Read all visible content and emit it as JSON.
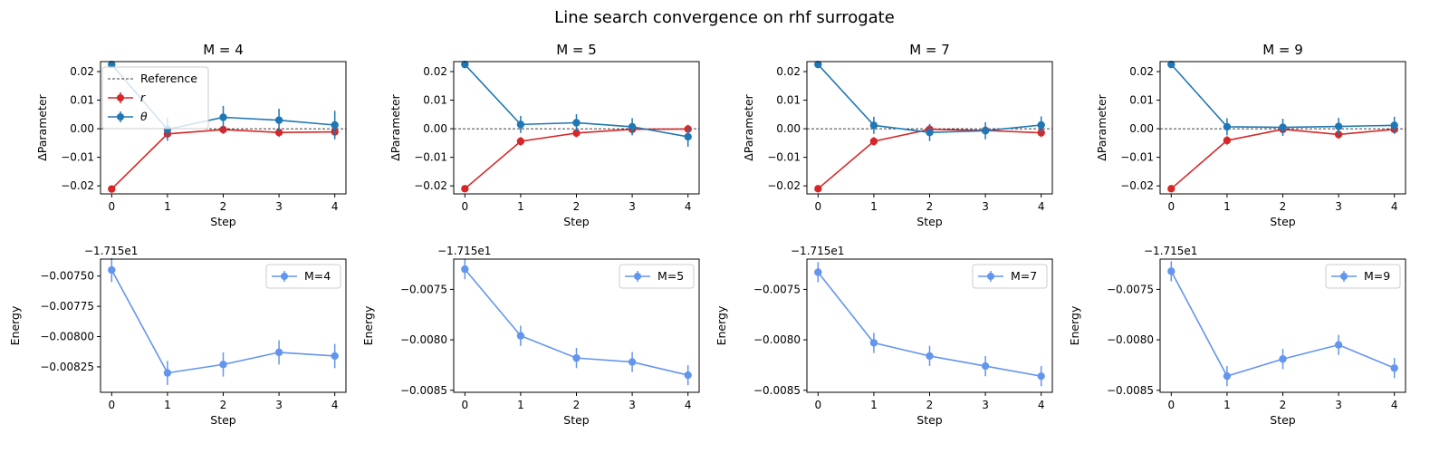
{
  "figure": {
    "suptitle": "Line search convergence on rhf surrogate"
  },
  "colors": {
    "r": "#d62728",
    "theta": "#1f77b4",
    "energy": "#6495ed",
    "reference": "#000000"
  },
  "chart_data": [
    {
      "type": "line",
      "panel": "param",
      "title": "M = 4",
      "xlabel": "Step",
      "ylabel": "ΔParameter",
      "x": [
        0,
        1,
        2,
        3,
        4
      ],
      "xlim": [
        -0.2,
        4.2
      ],
      "ylim": [
        -0.0228,
        0.0235
      ],
      "yticks": [
        -0.02,
        -0.01,
        0.0,
        0.01,
        0.02
      ],
      "yticklabels": [
        "−0.02",
        "−0.01",
        "0.00",
        "0.01",
        "0.02"
      ],
      "reference": 0.0,
      "legend": {
        "placement": "upper-left",
        "entries": [
          "Reference",
          "r",
          "θ"
        ]
      },
      "series": [
        {
          "name": "r",
          "values": [
            -0.0211,
            -0.0018,
            -0.0003,
            -0.0013,
            -0.0011
          ],
          "errors": [
            0.0005,
            0.0015,
            0.0015,
            0.0015,
            0.0015
          ]
        },
        {
          "name": "θ",
          "values": [
            0.0225,
            -0.0002,
            0.004,
            0.003,
            0.0013
          ],
          "errors": [
            0.0005,
            0.004,
            0.004,
            0.004,
            0.005
          ]
        }
      ]
    },
    {
      "type": "line",
      "panel": "param",
      "title": "M = 5",
      "xlabel": "Step",
      "ylabel": "ΔParameter",
      "x": [
        0,
        1,
        2,
        3,
        4
      ],
      "xlim": [
        -0.2,
        4.2
      ],
      "ylim": [
        -0.0228,
        0.0235
      ],
      "yticks": [
        -0.02,
        -0.01,
        0.0,
        0.01,
        0.02
      ],
      "yticklabels": [
        "−0.02",
        "−0.01",
        "0.00",
        "0.01",
        "0.02"
      ],
      "reference": 0.0,
      "series": [
        {
          "name": "r",
          "values": [
            -0.021,
            -0.0044,
            -0.0015,
            -0.0002,
            -0.0001
          ],
          "errors": [
            0.0005,
            0.0015,
            0.0015,
            0.0015,
            0.0015
          ]
        },
        {
          "name": "θ",
          "values": [
            0.0225,
            0.0015,
            0.0021,
            0.0007,
            -0.0028
          ],
          "errors": [
            0.0005,
            0.003,
            0.003,
            0.003,
            0.0035
          ]
        }
      ]
    },
    {
      "type": "line",
      "panel": "param",
      "title": "M = 7",
      "xlabel": "Step",
      "ylabel": "ΔParameter",
      "x": [
        0,
        1,
        2,
        3,
        4
      ],
      "xlim": [
        -0.2,
        4.2
      ],
      "ylim": [
        -0.0228,
        0.0235
      ],
      "yticks": [
        -0.02,
        -0.01,
        0.0,
        0.01,
        0.02
      ],
      "yticklabels": [
        "−0.02",
        "−0.01",
        "0.00",
        "0.01",
        "0.02"
      ],
      "reference": 0.0,
      "series": [
        {
          "name": "r",
          "values": [
            -0.021,
            -0.0044,
            -0.0002,
            -0.0006,
            -0.0014
          ],
          "errors": [
            0.0005,
            0.0015,
            0.0015,
            0.0015,
            0.0015
          ]
        },
        {
          "name": "θ",
          "values": [
            0.0225,
            0.0012,
            -0.0013,
            -0.0007,
            0.0013
          ],
          "errors": [
            0.0005,
            0.003,
            0.003,
            0.003,
            0.003
          ]
        }
      ]
    },
    {
      "type": "line",
      "panel": "param",
      "title": "M = 9",
      "xlabel": "Step",
      "ylabel": "ΔParameter",
      "x": [
        0,
        1,
        2,
        3,
        4
      ],
      "xlim": [
        -0.2,
        4.2
      ],
      "ylim": [
        -0.0228,
        0.0235
      ],
      "yticks": [
        -0.02,
        -0.01,
        0.0,
        0.01,
        0.02
      ],
      "yticklabels": [
        "−0.02",
        "−0.01",
        "0.00",
        "0.01",
        "0.02"
      ],
      "reference": 0.0,
      "series": [
        {
          "name": "r",
          "values": [
            -0.021,
            -0.0041,
            -0.0002,
            -0.002,
            -0.0002
          ],
          "errors": [
            0.0005,
            0.0015,
            0.0015,
            0.0015,
            0.0015
          ]
        },
        {
          "name": "θ",
          "values": [
            0.0225,
            0.0007,
            0.0005,
            0.0008,
            0.0012
          ],
          "errors": [
            0.0005,
            0.003,
            0.003,
            0.003,
            0.003
          ]
        }
      ]
    },
    {
      "type": "line",
      "panel": "energy",
      "xlabel": "Step",
      "ylabel": "Energy",
      "offset_label": "−1.715e1",
      "x": [
        0,
        1,
        2,
        3,
        4
      ],
      "xlim": [
        -0.2,
        4.2
      ],
      "ylim": [
        -0.00846,
        -0.00736
      ],
      "yticks": [
        -0.0075,
        -0.00775,
        -0.008,
        -0.00825
      ],
      "yticklabels": [
        "−0.00750",
        "−0.00775",
        "−0.00800",
        "−0.00825"
      ],
      "legend": {
        "placement": "upper-right",
        "entries": [
          "M=4"
        ]
      },
      "series": [
        {
          "name": "M=4",
          "values": [
            -0.00745,
            -0.0083,
            -0.00823,
            -0.00813,
            -0.00816
          ],
          "errors": [
            0.0001,
            0.0001,
            0.0001,
            0.0001,
            0.0001
          ]
        }
      ]
    },
    {
      "type": "line",
      "panel": "energy",
      "xlabel": "Step",
      "ylabel": "Energy",
      "offset_label": "−1.715e1",
      "x": [
        0,
        1,
        2,
        3,
        4
      ],
      "xlim": [
        -0.2,
        4.2
      ],
      "ylim": [
        -0.00852,
        -0.0072
      ],
      "yticks": [
        -0.0075,
        -0.008,
        -0.0085
      ],
      "yticklabels": [
        "−0.0075",
        "−0.0080",
        "−0.0085"
      ],
      "legend": {
        "placement": "upper-right",
        "entries": [
          "M=5"
        ]
      },
      "series": [
        {
          "name": "M=5",
          "values": [
            -0.0073,
            -0.00796,
            -0.00818,
            -0.00822,
            -0.00835
          ],
          "errors": [
            0.0001,
            0.0001,
            0.0001,
            0.0001,
            0.0001
          ]
        }
      ]
    },
    {
      "type": "line",
      "panel": "energy",
      "xlabel": "Step",
      "ylabel": "Energy",
      "offset_label": "−1.715e1",
      "x": [
        0,
        1,
        2,
        3,
        4
      ],
      "xlim": [
        -0.2,
        4.2
      ],
      "ylim": [
        -0.00852,
        -0.0072
      ],
      "yticks": [
        -0.0075,
        -0.008,
        -0.0085
      ],
      "yticklabels": [
        "−0.0075",
        "−0.0080",
        "−0.0085"
      ],
      "legend": {
        "placement": "upper-right",
        "entries": [
          "M=7"
        ]
      },
      "series": [
        {
          "name": "M=7",
          "values": [
            -0.00733,
            -0.00803,
            -0.00816,
            -0.00826,
            -0.00836
          ],
          "errors": [
            0.0001,
            0.0001,
            0.0001,
            0.0001,
            0.0001
          ]
        }
      ]
    },
    {
      "type": "line",
      "panel": "energy",
      "xlabel": "Step",
      "ylabel": "Energy",
      "offset_label": "−1.715e1",
      "x": [
        0,
        1,
        2,
        3,
        4
      ],
      "xlim": [
        -0.2,
        4.2
      ],
      "ylim": [
        -0.00852,
        -0.0072
      ],
      "yticks": [
        -0.0075,
        -0.008,
        -0.0085
      ],
      "yticklabels": [
        "−0.0075",
        "−0.0080",
        "−0.0085"
      ],
      "legend": {
        "placement": "upper-right",
        "entries": [
          "M=9"
        ]
      },
      "series": [
        {
          "name": "M=9",
          "values": [
            -0.00732,
            -0.00836,
            -0.00819,
            -0.00805,
            -0.00828
          ],
          "errors": [
            0.0001,
            0.0001,
            0.0001,
            0.0001,
            0.0001
          ]
        }
      ]
    }
  ]
}
